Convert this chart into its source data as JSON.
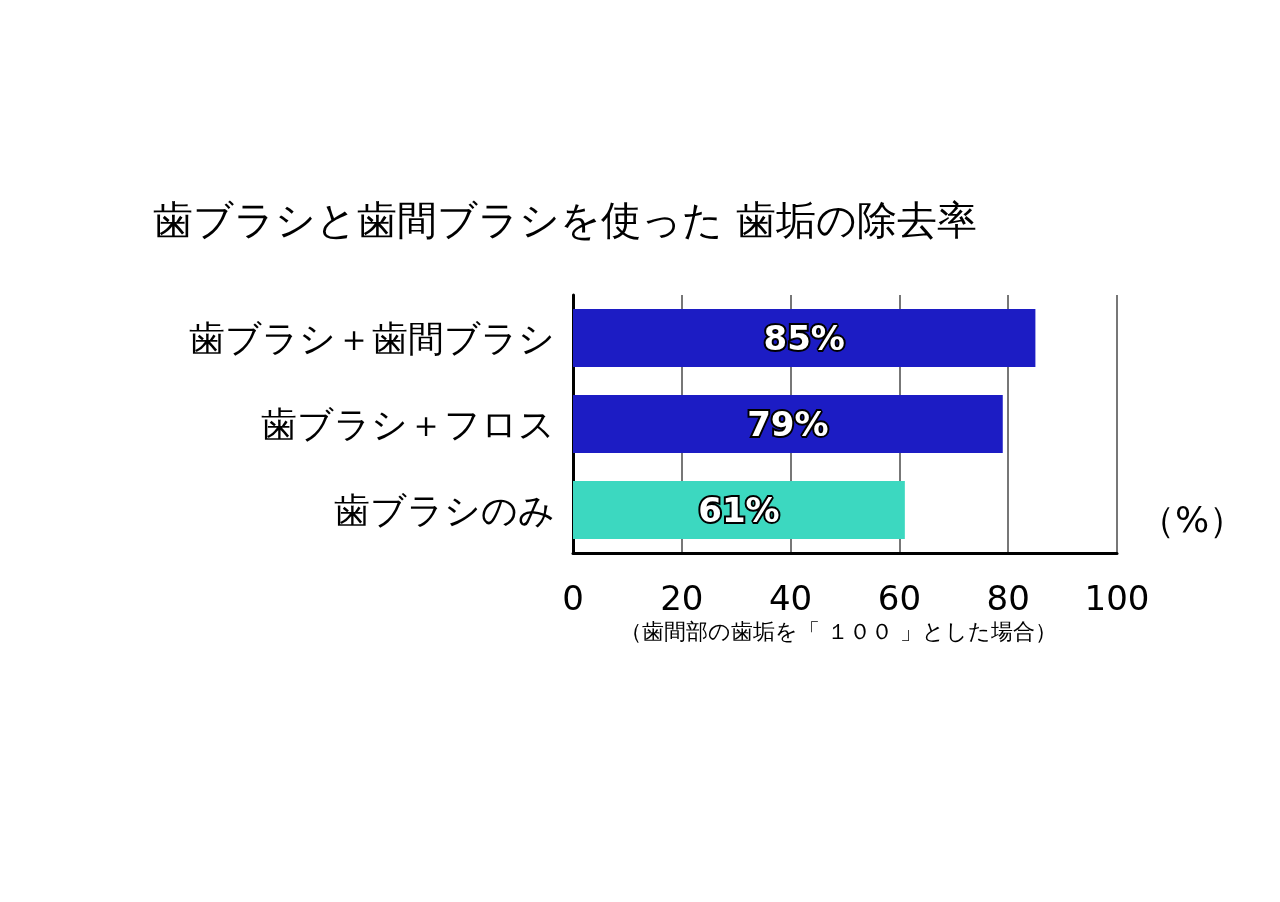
{
  "chart_data": {
    "type": "bar",
    "orientation": "horizontal",
    "title": "歯ブラシと歯間ブラシを使った 歯垢の除去率",
    "categories": [
      "歯ブラシ＋歯間ブラシ",
      "歯ブラシ＋フロス",
      "歯ブラシのみ"
    ],
    "values": [
      85,
      79,
      61
    ],
    "colors": [
      "#1c1cc4",
      "#1c1cc4",
      "#3cd8c0"
    ],
    "value_labels": [
      "85%",
      "79%",
      "61%"
    ],
    "xlabel": "（%）",
    "xlim": [
      0,
      100
    ],
    "xticks": [
      0,
      20,
      40,
      60,
      80,
      100
    ],
    "grid": "x",
    "annotations": [
      "（歯間部の歯垢を「 １００ 」とした場合）"
    ]
  }
}
